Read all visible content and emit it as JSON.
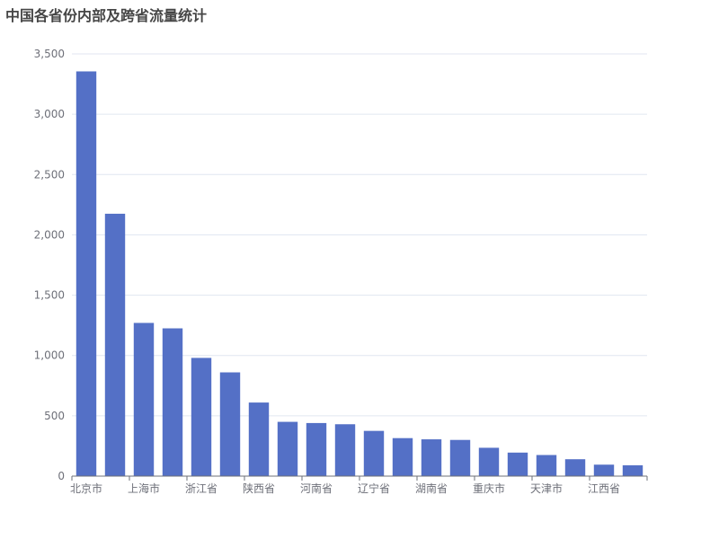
{
  "chart_data": {
    "type": "bar",
    "title": "中国各省份内部及跨省流量统计",
    "xlabel": "",
    "ylabel": "",
    "categories": [
      "北京市",
      "",
      "上海市",
      "",
      "浙江省",
      "",
      "陕西省",
      "",
      "河南省",
      "",
      "辽宁省",
      "",
      "湖南省",
      "",
      "重庆市",
      "",
      "天津市",
      "",
      "江西省",
      ""
    ],
    "values": [
      3355,
      2175,
      1270,
      1225,
      980,
      860,
      610,
      450,
      440,
      430,
      375,
      315,
      305,
      300,
      235,
      195,
      175,
      140,
      95,
      90
    ],
    "ylim": [
      0,
      3500
    ],
    "yticks": [
      0,
      500,
      1000,
      1500,
      2000,
      2500,
      3000,
      3500
    ],
    "ytick_labels": [
      "0",
      "500",
      "1,000",
      "1,500",
      "2,000",
      "2,500",
      "3,000",
      "3,500"
    ],
    "grid": true,
    "bar_color": "#5470c6"
  }
}
